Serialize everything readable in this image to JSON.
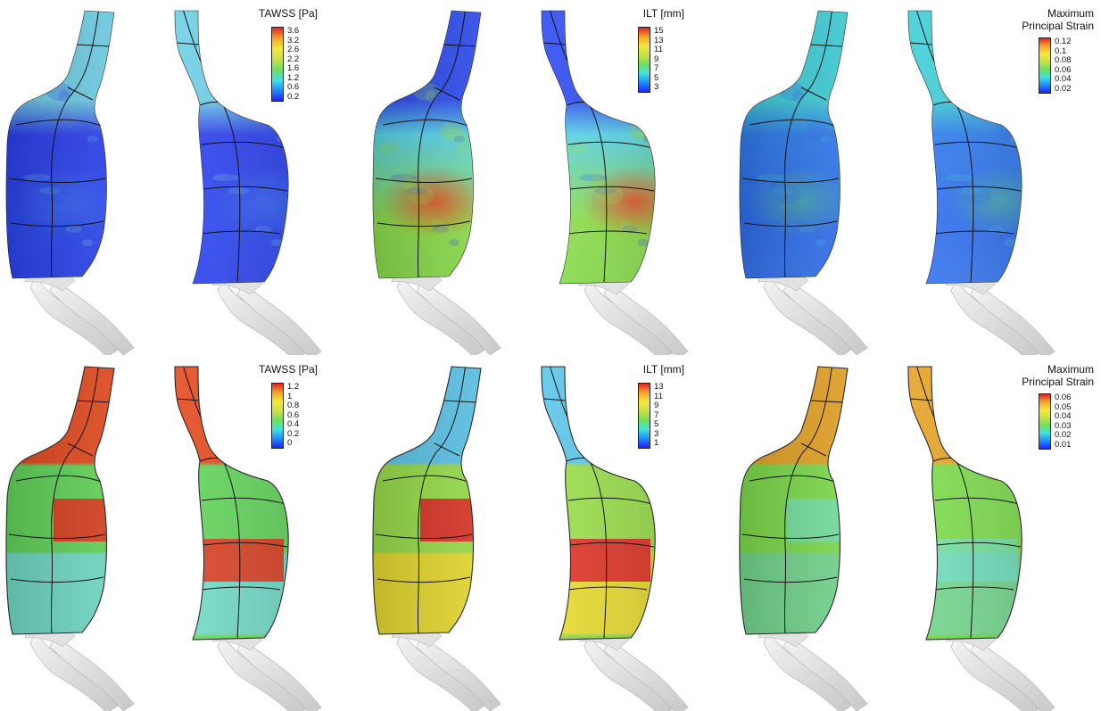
{
  "colormap": [
    "#2121ff",
    "#1f8cff",
    "#3fe3e3",
    "#6fe05a",
    "#c9e04a",
    "#f2ea3a",
    "#f6a428",
    "#e02222"
  ],
  "vessel_base_color": "#e6e6e6",
  "panels": [
    {
      "row": "top",
      "column": "tawss",
      "style": "continuous",
      "legend": {
        "title": [
          "TAWSS [Pa]"
        ],
        "ticks": [
          "3.6",
          "3.2",
          "2.6",
          "2.2",
          "1.6",
          "1.2",
          "0.6",
          "0.2"
        ]
      },
      "colors": {
        "neck": "#6fd0e6",
        "upper": "#2b3ef0",
        "mid": "#2a47f2",
        "lower": "#2a3cef",
        "hot": "#5ad0ff",
        "hot_level": 0.2
      }
    },
    {
      "row": "top",
      "column": "ilt",
      "style": "continuous",
      "legend": {
        "title": [
          "ILT [mm]"
        ],
        "ticks": [
          "15",
          "13",
          "11",
          "9",
          "7",
          "5",
          "3"
        ]
      },
      "colors": {
        "neck": "#2e4cf2",
        "upper": "#5ad7ea",
        "mid": "#8fe04a",
        "lower": "#7ddc4d",
        "hot": "#ee4a22",
        "hot_level": 0.9
      }
    },
    {
      "row": "top",
      "column": "strain",
      "style": "continuous",
      "legend": {
        "title": [
          "Maximum",
          "Principal Strain"
        ],
        "ticks": [
          "0.12",
          "0.1",
          "0.08",
          "0.06",
          "0.04",
          "0.02"
        ]
      },
      "colors": {
        "neck": "#3fd0d8",
        "upper": "#2f7ef0",
        "mid": "#2f6ef2",
        "lower": "#3b7ff0",
        "hot": "#58e06a",
        "hot_level": 0.45
      }
    },
    {
      "row": "bottom",
      "column": "tawss",
      "style": "patch",
      "legend": {
        "title": [
          "TAWSS [Pa]"
        ],
        "ticks": [
          "1.2",
          "1",
          "0.8",
          "0.6",
          "0.4",
          "0.2",
          "0"
        ]
      },
      "colors": {
        "neck": "#e54a1e",
        "upper": "#62d65a",
        "mid": "#72dcc8",
        "lower": "#6ad95a",
        "hot": "#e0381c",
        "hot_level": 0.95
      }
    },
    {
      "row": "bottom",
      "column": "ilt",
      "style": "patch",
      "legend": {
        "title": [
          "ILT [mm]"
        ],
        "ticks": [
          "13",
          "11",
          "9",
          "7",
          "5",
          "3",
          "1"
        ]
      },
      "colors": {
        "neck": "#5cc6ea",
        "upper": "#9ae04a",
        "mid": "#e9dc2e",
        "lower": "#8ad84c",
        "hot": "#e02a24",
        "hot_level": 0.95
      }
    },
    {
      "row": "bottom",
      "column": "strain",
      "style": "patch",
      "legend": {
        "title": [
          "Maximum",
          "Principal Strain"
        ],
        "ticks": [
          "0.06",
          "0.05",
          "0.04",
          "0.03",
          "0.02",
          "0.01"
        ]
      },
      "colors": {
        "neck": "#e7a426",
        "upper": "#7ede4c",
        "mid": "#74d88e",
        "lower": "#70d84c",
        "hot": "#6ce6f0",
        "hot_level": 0.5
      }
    }
  ]
}
